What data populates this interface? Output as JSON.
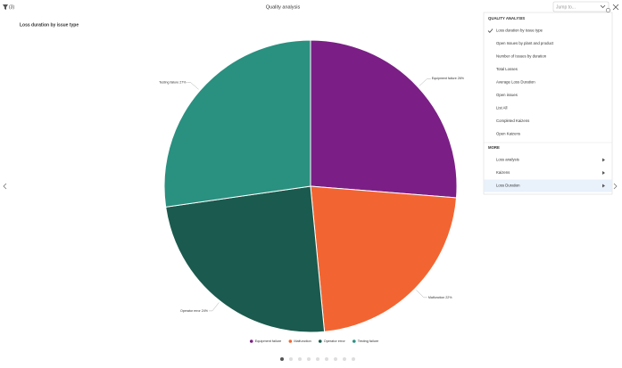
{
  "header": {
    "filter_count": "(3)",
    "title": "Quality analysis",
    "search_placeholder": "Jump to..."
  },
  "chart_data": {
    "type": "pie",
    "title": "Loss duration by issue type",
    "categories": [
      "Equipment failure",
      "Malfunction",
      "Operator error",
      "Testing failure"
    ],
    "values": [
      26,
      22,
      24,
      27
    ],
    "value_labels": [
      "26%",
      "22%",
      "24%",
      "27%"
    ],
    "colors": [
      "#7b1f86",
      "#f26532",
      "#1b5a4e",
      "#2a9080"
    ],
    "legend": "bottom"
  },
  "menu": {
    "sections": [
      {
        "title": "QUALITY ANALYSIS",
        "selected": 0,
        "items": [
          "Loss duration by issue type",
          "Open Issues by plant and product",
          "Number of Issues by duration",
          "Total Losses",
          "Average Loss Duration",
          "Open issues",
          "List All",
          "Completed Kaizens",
          "Open Kaizens"
        ]
      },
      {
        "title": "MORE",
        "highlighted": 2,
        "items": [
          "Loss analysis",
          "Kaizens",
          "Loss Duration"
        ]
      }
    ]
  }
}
